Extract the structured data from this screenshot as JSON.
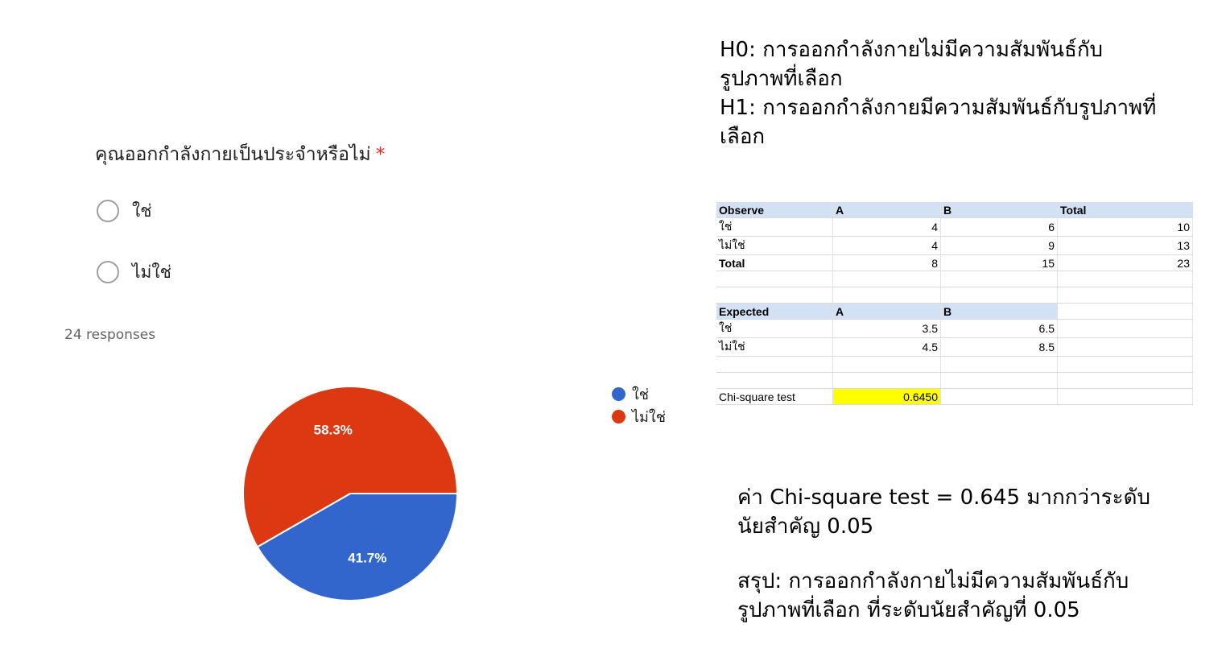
{
  "question": {
    "title": "คุณออกกำลังกายเป็นประจำหรือไม่",
    "required_mark": "*",
    "options": [
      {
        "label": "ใช่"
      },
      {
        "label": "ไม่ใช่"
      }
    ],
    "responses_text": "24 responses"
  },
  "chart_data": {
    "type": "pie",
    "slices": [
      {
        "label": "ใช่",
        "value": 41.7,
        "display": "41.7%",
        "color": "#3366cc"
      },
      {
        "label": "ไม่ใช่",
        "value": 58.3,
        "display": "58.3%",
        "color": "#dc3912"
      }
    ],
    "legend_position": "right"
  },
  "hypotheses": {
    "h0_line1": "H0: การออกกำลังกายไม่มีความสัมพันธ์กับ",
    "h0_line2": "รูปภาพที่เลือก",
    "h1_line1": "H1: การออกกำลังกายมีความสัมพันธ์กับรูปภาพที่",
    "h1_line2": "เลือก"
  },
  "table": {
    "observe": {
      "header": [
        "Observe",
        "A",
        "B",
        "Total"
      ],
      "rows": [
        [
          "ใช่",
          "4",
          "6",
          "10"
        ],
        [
          "ไม่ใช่",
          "4",
          "9",
          "13"
        ],
        [
          "Total",
          "8",
          "15",
          "23"
        ]
      ]
    },
    "expected": {
      "header": [
        "Expected",
        "A",
        "B"
      ],
      "rows": [
        [
          "ใช่",
          "3.5",
          "6.5"
        ],
        [
          "ไม่ใช่",
          "4.5",
          "8.5"
        ]
      ]
    },
    "chi_square": {
      "label": "Chi-square test",
      "value": "0.6450"
    }
  },
  "conclusion": {
    "line1": "ค่า Chi-square test = 0.645 มากกว่าระดับ",
    "line2": "นัยสำคัญ 0.05",
    "line3": "สรุป: การออกกำลังกายไม่มีความสัมพันธ์กับ",
    "line4": "รูปภาพที่เลือก ที่ระดับนัยสำคัญที่ 0.05"
  }
}
